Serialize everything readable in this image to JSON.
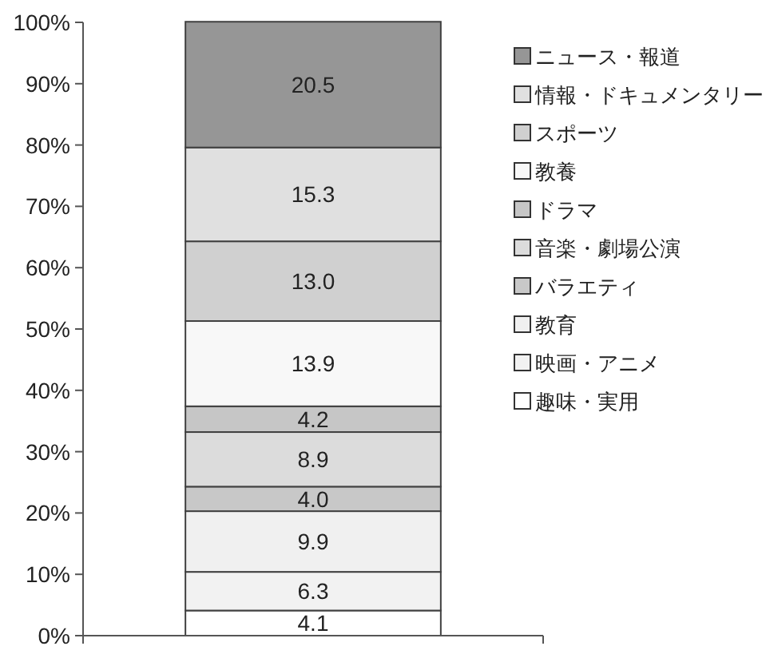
{
  "chart_data": {
    "type": "bar",
    "stacked": true,
    "categories": [
      null
    ],
    "ylim": [
      0,
      100
    ],
    "yticks": [
      {
        "value": 0,
        "label": "0%"
      },
      {
        "value": 10,
        "label": "10%"
      },
      {
        "value": 20,
        "label": "20%"
      },
      {
        "value": 30,
        "label": "30%"
      },
      {
        "value": 40,
        "label": "40%"
      },
      {
        "value": 50,
        "label": "50%"
      },
      {
        "value": 60,
        "label": "60%"
      },
      {
        "value": 70,
        "label": "70%"
      },
      {
        "value": 80,
        "label": "80%"
      },
      {
        "value": 90,
        "label": "90%"
      },
      {
        "value": 100,
        "label": "100%"
      }
    ],
    "grid": false,
    "legend": "right",
    "series": [
      {
        "name": "趣味・実用",
        "color": "#ffffff",
        "values": [
          4.1
        ],
        "value_labels": [
          "4.1"
        ]
      },
      {
        "name": "映画・アニメ",
        "color": "#f2f2f2",
        "values": [
          6.3
        ],
        "value_labels": [
          "6.3"
        ]
      },
      {
        "name": "教育",
        "color": "#f0f0f0",
        "values": [
          9.9
        ],
        "value_labels": [
          "9.9"
        ]
      },
      {
        "name": "バラエティ",
        "color": "#c8c8c8",
        "values": [
          4.0
        ],
        "value_labels": [
          "4.0"
        ]
      },
      {
        "name": "音楽・劇場公演",
        "color": "#dcdcdc",
        "values": [
          8.9
        ],
        "value_labels": [
          "8.9"
        ]
      },
      {
        "name": "ドラマ",
        "color": "#c6c6c6",
        "values": [
          4.2
        ],
        "value_labels": [
          "4.2"
        ]
      },
      {
        "name": "教養",
        "color": "#f8f8f8",
        "values": [
          13.9
        ],
        "value_labels": [
          "13.9"
        ]
      },
      {
        "name": "スポーツ",
        "color": "#d0d0d0",
        "values": [
          13.0
        ],
        "value_labels": [
          "13.0"
        ]
      },
      {
        "name": "情報・ドキュメンタリー",
        "color": "#e0e0e0",
        "values": [
          15.3
        ],
        "value_labels": [
          "15.3"
        ]
      },
      {
        "name": "ニュース・報道",
        "color": "#969696",
        "values": [
          20.5
        ],
        "value_labels": [
          "20.5"
        ]
      }
    ]
  }
}
